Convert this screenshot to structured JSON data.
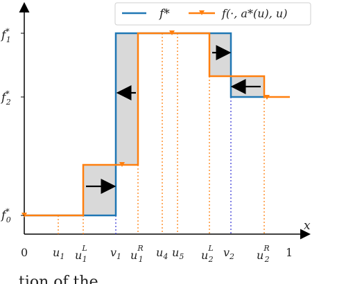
{
  "y_axis_labels": [
    {
      "key": "f1",
      "base": "f",
      "sup": "*",
      "sub": "1"
    },
    {
      "key": "f2",
      "base": "f",
      "sup": "*",
      "sub": "2"
    },
    {
      "key": "f0",
      "base": "f",
      "sup": "*",
      "sub": "0"
    }
  ],
  "x_axis_label": "x",
  "x_tick_labels": [
    {
      "key": "zero",
      "text": "0"
    },
    {
      "key": "u1",
      "base": "u",
      "sub": "1"
    },
    {
      "key": "u1L",
      "base": "u",
      "sub": "1",
      "sup": "L"
    },
    {
      "key": "v1",
      "base": "v",
      "sub": "1"
    },
    {
      "key": "u1R",
      "base": "u",
      "sub": "1",
      "sup": "R"
    },
    {
      "key": "u4",
      "base": "u",
      "sub": "4"
    },
    {
      "key": "u5",
      "base": "u",
      "sub": "5"
    },
    {
      "key": "u2L",
      "base": "u",
      "sub": "2",
      "sup": "L"
    },
    {
      "key": "v2",
      "base": "v",
      "sub": "2"
    },
    {
      "key": "u2R",
      "base": "u",
      "sub": "2",
      "sup": "R"
    },
    {
      "key": "one",
      "text": "1"
    }
  ],
  "legend": {
    "entry1": {
      "label": "f*",
      "color": "#1f77b4"
    },
    "entry2": {
      "label": "f(·, a*(u), u)",
      "color": "#ff7f0e"
    }
  },
  "colors": {
    "blue": "#1f77b4",
    "orange": "#ff7f0e",
    "shade": "#d9d9d9",
    "dotted_blue": "#3b3bd6"
  },
  "caption_fragment": "...tion of the ... ... ... ... ... ..."
}
